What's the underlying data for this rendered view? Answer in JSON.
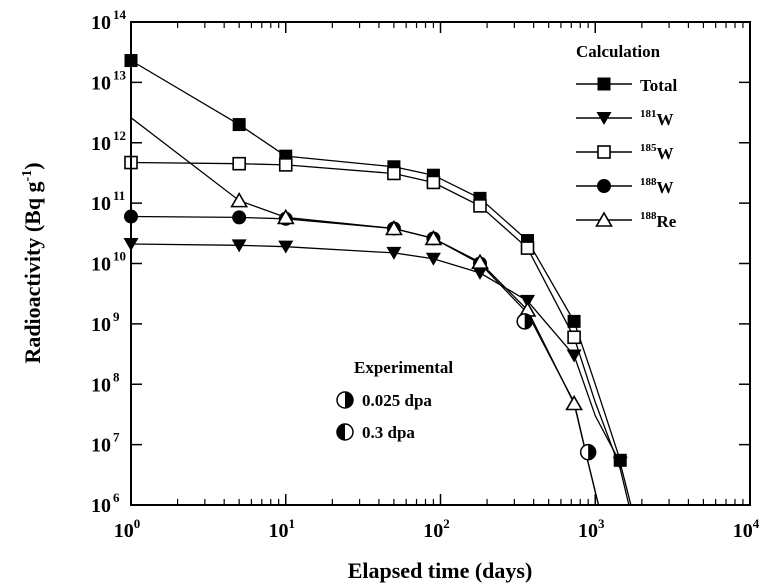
{
  "chart_data": {
    "type": "line",
    "xscale": "log",
    "yscale": "log",
    "xlim": [
      1,
      10000
    ],
    "ylim": [
      1000000,
      100000000000000
    ],
    "xlabel": "Elapsed time (days)",
    "ylabel": {
      "main": "Radioactivity (Bq g",
      "exp": "-1",
      "close": ")"
    },
    "xticks": [
      {
        "value": 1,
        "base": "10",
        "exp": "0"
      },
      {
        "value": 10,
        "base": "10",
        "exp": "1"
      },
      {
        "value": 100,
        "base": "10",
        "exp": "2"
      },
      {
        "value": 1000,
        "base": "10",
        "exp": "3"
      },
      {
        "value": 10000,
        "base": "10",
        "exp": "4"
      }
    ],
    "yticks": [
      {
        "value": 1000000,
        "base": "10",
        "exp": "6"
      },
      {
        "value": 10000000,
        "base": "10",
        "exp": "7"
      },
      {
        "value": 100000000,
        "base": "10",
        "exp": "8"
      },
      {
        "value": 1000000000,
        "base": "10",
        "exp": "9"
      },
      {
        "value": 10000000000,
        "base": "10",
        "exp": "10"
      },
      {
        "value": 100000000000,
        "base": "10",
        "exp": "11"
      },
      {
        "value": 1000000000000,
        "base": "10",
        "exp": "12"
      },
      {
        "value": 10000000000000,
        "base": "10",
        "exp": "13"
      },
      {
        "value": 100000000000000,
        "base": "10",
        "exp": "14"
      }
    ],
    "legend_calc": {
      "title": "Calculation",
      "placement": "top-right",
      "entries": [
        {
          "series": "Total",
          "sup": "",
          "label": "Total"
        },
        {
          "series": "181W",
          "sup": "181",
          "label": "W"
        },
        {
          "series": "185W",
          "sup": "185",
          "label": "W"
        },
        {
          "series": "188W",
          "sup": "188",
          "label": "W"
        },
        {
          "series": "188Re",
          "sup": "188",
          "label": "Re"
        }
      ]
    },
    "legend_exp": {
      "title": "Experimental",
      "placement": "center",
      "entries": [
        {
          "label": "0.025 dpa",
          "half": "right"
        },
        {
          "label": "0.3 dpa",
          "half": "left"
        }
      ]
    },
    "series": [
      {
        "name": "Total",
        "marker": "filled-square",
        "line_x": [
          1,
          5,
          10,
          50,
          90,
          180,
          365,
          730,
          1000,
          1450
        ],
        "line_y": [
          23000000000000.0,
          2000000000000.0,
          600000000000.0,
          400000000000.0,
          290000000000.0,
          120000000000.0,
          24000000000.0,
          1100000000.0,
          100000000.0,
          5500000.0
        ],
        "points_x": [
          1,
          5,
          10,
          50,
          90,
          180,
          365,
          730,
          1450
        ],
        "points_y": [
          23000000000000.0,
          2000000000000.0,
          600000000000.0,
          400000000000.0,
          290000000000.0,
          120000000000.0,
          24000000000.0,
          1100000000.0,
          5500000.0
        ]
      },
      {
        "name": "181W",
        "marker": "filled-triangle-down",
        "line_x": [
          1,
          5,
          10,
          50,
          90,
          180,
          365,
          730,
          1000,
          1450,
          1700
        ],
        "line_y": [
          21000000000.0,
          20000000000.0,
          19000000000.0,
          15000000000.0,
          12000000000.0,
          7000000000.0,
          2400000000.0,
          300000000.0,
          30000000.0,
          5000000.0,
          1000000.0
        ],
        "points_x": [
          1,
          5,
          10,
          50,
          90,
          180,
          365,
          730,
          1450
        ],
        "points_y": [
          21000000000.0,
          20000000000.0,
          19000000000.0,
          15000000000.0,
          12000000000.0,
          7000000000.0,
          2400000000.0,
          300000000.0,
          5000000.0
        ]
      },
      {
        "name": "185W",
        "marker": "open-square",
        "line_x": [
          1,
          5,
          10,
          50,
          90,
          180,
          365,
          730,
          1000,
          1450,
          1650
        ],
        "line_y": [
          470000000000.0,
          450000000000.0,
          430000000000.0,
          310000000000.0,
          220000000000.0,
          90000000000.0,
          18000000000.0,
          600000000.0,
          50000000.0,
          4000000.0,
          1000000.0
        ],
        "points_x": [
          1,
          5,
          10,
          50,
          90,
          180,
          365,
          730
        ],
        "points_y": [
          470000000000.0,
          450000000000.0,
          430000000000.0,
          310000000000.0,
          220000000000.0,
          90000000000.0,
          18000000000.0,
          600000000.0
        ]
      },
      {
        "name": "188W",
        "marker": "filled-circle",
        "line_x": [
          1,
          5,
          10,
          50,
          90,
          180,
          365,
          730,
          900,
          1050
        ],
        "line_y": [
          60000000000.0,
          58000000000.0,
          55000000000.0,
          38000000000.0,
          26000000000.0,
          10000000000.0,
          1500000000.0,
          50000000.0,
          5000000.0,
          1000000.0
        ],
        "points_x": [
          1,
          5,
          10,
          50,
          90,
          180
        ],
        "points_y": [
          60000000000.0,
          58000000000.0,
          55000000000.0,
          38000000000.0,
          26000000000.0,
          10000000000.0
        ]
      },
      {
        "name": "188Re",
        "marker": "open-triangle-up",
        "line_x": [
          1,
          5,
          10,
          50,
          90,
          180,
          365,
          730,
          900,
          1050
        ],
        "line_y": [
          2600000000000.0,
          110000000000.0,
          58000000000.0,
          38000000000.0,
          26000000000.0,
          10500000000.0,
          1700000000.0,
          48000000.0,
          5000000.0,
          1000000.0
        ],
        "points_x": [
          5,
          10,
          50,
          90,
          180,
          365,
          730
        ],
        "points_y": [
          110000000000.0,
          58000000000.0,
          38000000000.0,
          26000000000.0,
          10500000000.0,
          1700000000.0,
          48000000.0
        ]
      }
    ],
    "experimental_points": [
      {
        "x": 350,
        "y": 1100000000.0,
        "half": "right"
      },
      {
        "x": 900,
        "y": 7500000.0,
        "half": "right"
      }
    ]
  }
}
